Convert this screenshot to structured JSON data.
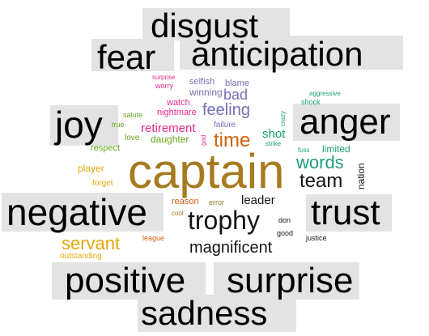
{
  "word_cloud": {
    "emotion_words": {
      "disgust": "disgust",
      "fear": "fear",
      "anticipation": "anticipation",
      "joy": "joy",
      "anger": "anger",
      "negative": "negative",
      "trust": "trust",
      "positive": "positive",
      "surprise": "surprise",
      "sadness": "sadness"
    },
    "words": {
      "captain": "captain",
      "time": "time",
      "trophy": "trophy",
      "magnificent": "magnificent",
      "servant": "servant",
      "team": "team",
      "words": "words",
      "feeling": "feeling",
      "bad": "bad",
      "retirement": "retirement",
      "leader": "leader",
      "shot": "shot",
      "winning": "winning",
      "selfish": "selfish",
      "blame": "blame",
      "watch": "watch",
      "nightmare": "nightmare",
      "daughter": "daughter",
      "failure": "failure",
      "surprise_small": "surprise",
      "worry": "worry",
      "salute": "salute",
      "true": "true",
      "love": "love",
      "respect": "respect",
      "player": "player",
      "forget": "forget",
      "reason": "reason",
      "error": "error",
      "cool": "cool",
      "league": "league",
      "outstanding": "outstanding",
      "aggressive": "aggressive",
      "shock": "shock",
      "crazy": "crazy",
      "strike": "strike",
      "fuss": "fuss",
      "limited": "limited",
      "nation": "nation",
      "don": "don",
      "good": "good",
      "justice": "justice",
      "god": "god"
    },
    "colors": {
      "emotion": "#000000",
      "emotion_bg": "#e3e3e3",
      "brown": "#a67a1f",
      "orange": "#d35f0c",
      "gold": "#e6a80a",
      "teal": "#1b9e77",
      "purple": "#7570b3",
      "magenta": "#e7298a",
      "green": "#66a61e",
      "olive": "#8c7a35",
      "dark": "#141414"
    }
  }
}
